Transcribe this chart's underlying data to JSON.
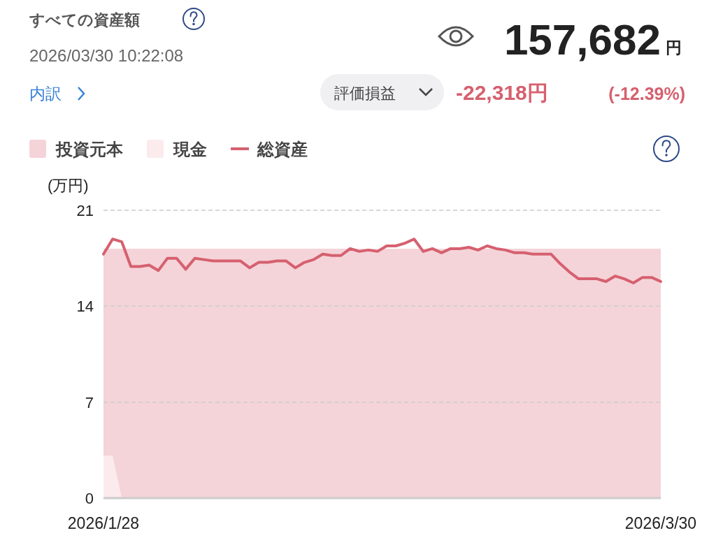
{
  "chart_data": {
    "type": "line",
    "title": "すべての資産額",
    "subtitle": "2026/03/30 10:22:08",
    "ylabel": "(万円)",
    "annotations": [
      "内訳",
      "157,682",
      "円",
      "評価損益",
      "-22,318円",
      "(-12.39%)"
    ],
    "categories": [
      "2026/1/28",
      null,
      null,
      null,
      null,
      null,
      null,
      null,
      null,
      null,
      null,
      null,
      null,
      null,
      null,
      null,
      null,
      null,
      null,
      null,
      null,
      null,
      null,
      null,
      null,
      null,
      null,
      null,
      null,
      null,
      null,
      null,
      null,
      null,
      null,
      null,
      null,
      null,
      null,
      null,
      null,
      null,
      null,
      null,
      null,
      null,
      null,
      null,
      null,
      null,
      null,
      null,
      null,
      null,
      null,
      null,
      null,
      null,
      null,
      null,
      null,
      "2026/3/30"
    ],
    "series": [
      {
        "name": "投資元本",
        "type": "area",
        "color": "#f4d4d9",
        "values": [
          18.2,
          18.2,
          18.2,
          18.2,
          18.2,
          18.2,
          18.2,
          18.2,
          18.2,
          18.2,
          18.2,
          18.2,
          18.2,
          18.2,
          18.2,
          18.2,
          18.2,
          18.2,
          18.2,
          18.2,
          18.2,
          18.2,
          18.2,
          18.2,
          18.2,
          18.2,
          18.2,
          18.2,
          18.2,
          18.2,
          18.2,
          18.2,
          18.2,
          18.2,
          18.2,
          18.2,
          18.2,
          18.2,
          18.2,
          18.2,
          18.2,
          18.2,
          18.2,
          18.2,
          18.2,
          18.2,
          18.2,
          18.2,
          18.2,
          18.2,
          18.2,
          18.2,
          18.2,
          18.2,
          18.2,
          18.2,
          18.2,
          18.2,
          18.2,
          18.2,
          18.2,
          18.2
        ]
      },
      {
        "name": "現金",
        "type": "area",
        "color": "#fbebed",
        "values": [
          3.1,
          3.1,
          0,
          0,
          0,
          0,
          0,
          0,
          0,
          0,
          0,
          0,
          0,
          0,
          0,
          0,
          0,
          0,
          0,
          0,
          0,
          0,
          0,
          0,
          0,
          0,
          0,
          0,
          0,
          0,
          0,
          0,
          0,
          0,
          0,
          0,
          0,
          0,
          0,
          0,
          0,
          0,
          0,
          0,
          0,
          0,
          0,
          0,
          0,
          0,
          0,
          0,
          0,
          0,
          0,
          0,
          0,
          0,
          0,
          0,
          0,
          0
        ]
      },
      {
        "name": "総資産",
        "type": "line",
        "color": "#d6606f",
        "values": [
          17.8,
          18.9,
          18.7,
          16.9,
          16.9,
          17.0,
          16.6,
          17.5,
          17.5,
          16.7,
          17.5,
          17.4,
          17.3,
          17.3,
          17.3,
          17.3,
          16.8,
          17.2,
          17.2,
          17.3,
          17.3,
          16.8,
          17.2,
          17.4,
          17.8,
          17.7,
          17.7,
          18.2,
          18.0,
          18.1,
          18.0,
          18.4,
          18.4,
          18.6,
          18.9,
          18.0,
          18.2,
          17.9,
          18.2,
          18.2,
          18.3,
          18.1,
          18.4,
          18.2,
          18.1,
          17.9,
          17.9,
          17.8,
          17.8,
          17.8,
          17.1,
          16.5,
          16.0,
          16.0,
          16.0,
          15.8,
          16.2,
          16.0,
          15.7,
          16.1,
          16.1,
          15.8
        ]
      }
    ],
    "ylim": [
      0,
      21
    ],
    "yticks": [
      0,
      7,
      14,
      21
    ],
    "grid": "y",
    "legend": "top left"
  }
}
